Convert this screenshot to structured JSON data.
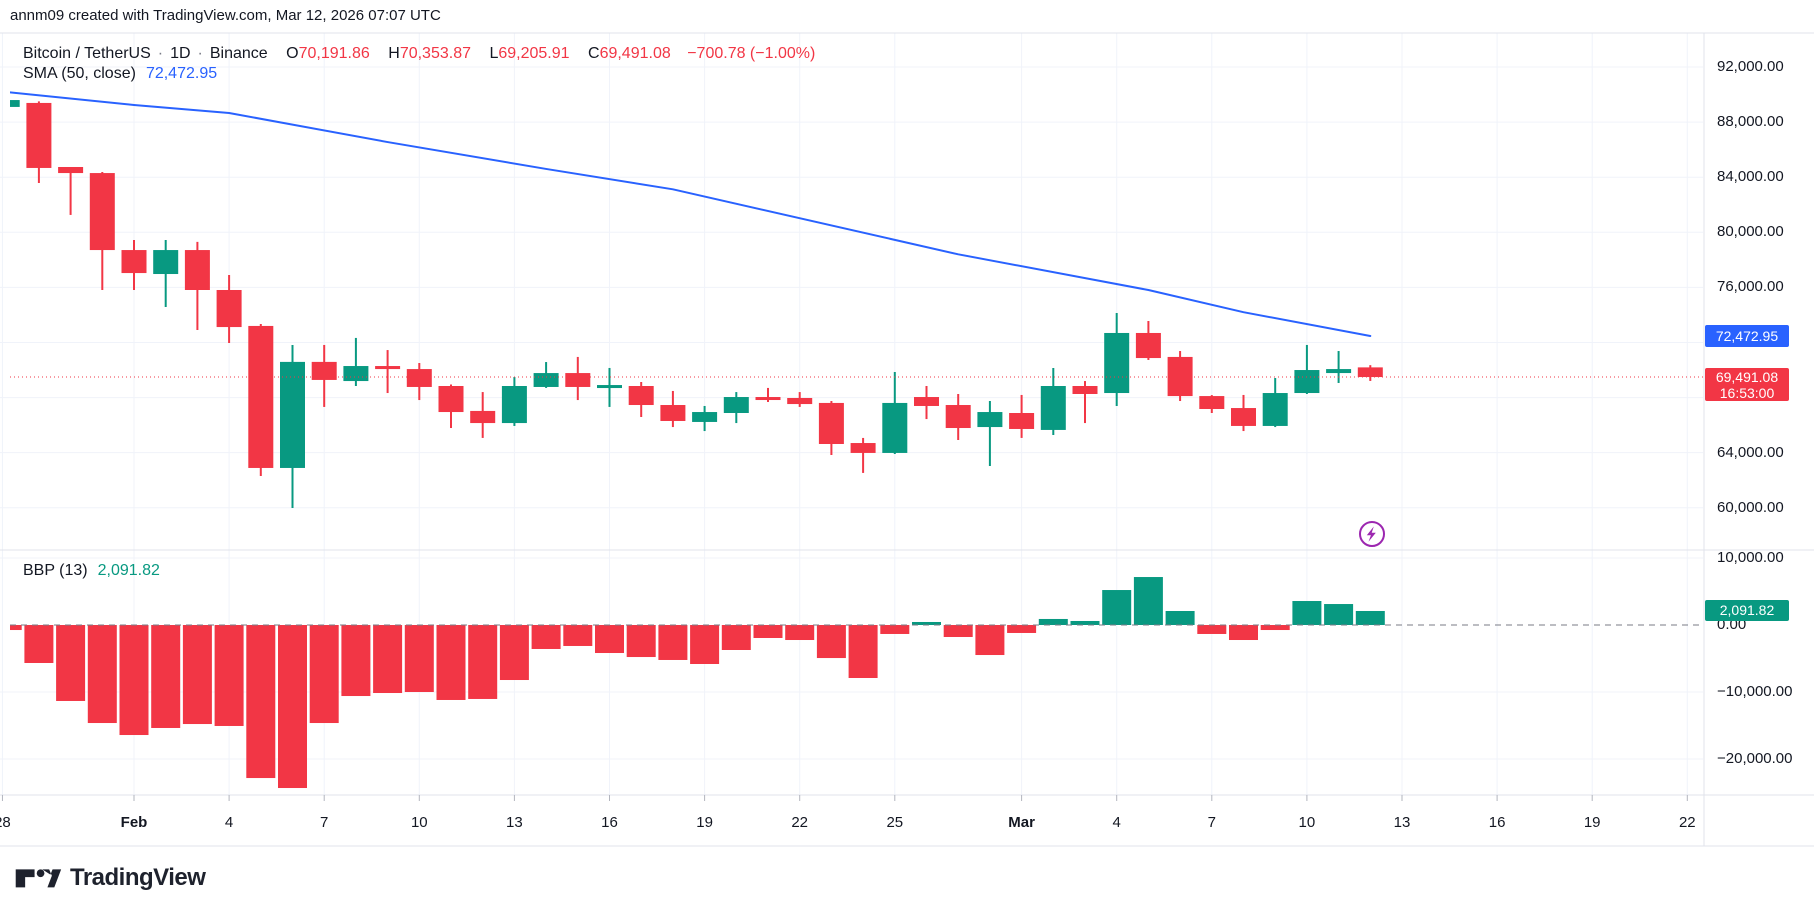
{
  "header": {
    "attribution": "annm09 created with TradingView.com, Mar 12, 2026 07:07 UTC"
  },
  "legend": {
    "symbol": "Bitcoin / TetherUS",
    "sep": "·",
    "interval": "1D",
    "exchange": "Binance",
    "ohlc": {
      "open_label": "O",
      "open": "70,191.86",
      "high_label": "H",
      "high": "70,353.87",
      "low_label": "L",
      "low": "69,205.91",
      "close_label": "C",
      "close": "69,491.08",
      "change": "−700.78 (−1.00%)"
    },
    "sma_label": "SMA (50, close)",
    "sma_value": "72,472.95"
  },
  "bbp_legend": {
    "label": "BBP (13)",
    "value": "2,091.82"
  },
  "badges": {
    "sma": "72,472.95",
    "close_price": "69,491.08",
    "close_time": "16:53:00",
    "bbp": "2,091.82"
  },
  "watermark": {
    "logo_text": "TradingView"
  },
  "icons": {
    "lightning": "lightning-bolt-in-circle"
  },
  "colors": {
    "up": "#089981",
    "down": "#f23645",
    "sma": "#2962ff",
    "grid": "#f0f3fa",
    "border": "#e0e3eb",
    "tick": "#b2b5be",
    "zero_line": "#787b86",
    "text": "#131722",
    "badge_sma_bg": "#2962ff",
    "badge_close_bg": "#f23645",
    "badge_bbp_bg": "#089981",
    "lightning": "#9c27b0"
  },
  "chart_data": {
    "type": "candlestick",
    "title": "Bitcoin / TetherUS, 1D, Binance with SMA(50) overlay and BBP(13) histogram panel",
    "grid": true,
    "legend_position": "top-left",
    "price_axis_side": "right",
    "price_ylim": [
      56934,
      94468
    ],
    "bbp_ylim": [
      -25372,
      11194
    ],
    "close_price_line": 69491.08,
    "sma_current": 72472.95,
    "bbp_current": 2091.82,
    "candles": [
      [
        "Jan 28",
        89100,
        89700,
        89000,
        89600
      ],
      [
        "Jan 29",
        89390,
        89500,
        83580,
        84670
      ],
      [
        "Jan 30",
        84740,
        84740,
        81260,
        84300
      ],
      [
        "Jan 31",
        84300,
        84380,
        75810,
        78710
      ],
      [
        "Feb 1",
        78710,
        79440,
        75810,
        77040
      ],
      [
        "Feb 2",
        76970,
        79440,
        74580,
        78710
      ],
      [
        "Feb 3",
        78710,
        79300,
        72910,
        75810
      ],
      [
        "Feb 4",
        75810,
        76900,
        71960,
        73120
      ],
      [
        "Feb 5",
        73200,
        73340,
        62310,
        62890
      ],
      [
        "Feb 6",
        62890,
        71820,
        59980,
        70590
      ],
      [
        "Feb 7",
        70590,
        71820,
        67320,
        69280
      ],
      [
        "Feb 8",
        69200,
        72330,
        68840,
        70290
      ],
      [
        "Feb 9",
        70290,
        71450,
        68330,
        70070
      ],
      [
        "Feb 10",
        70070,
        70510,
        67820,
        68770
      ],
      [
        "Feb 11",
        68840,
        68950,
        65790,
        66950
      ],
      [
        "Feb 12",
        67030,
        68400,
        65070,
        66150
      ],
      [
        "Feb 13",
        66150,
        69490,
        65940,
        68840
      ],
      [
        "Feb 14",
        68770,
        70580,
        68700,
        69780
      ],
      [
        "Feb 15",
        69780,
        70950,
        67820,
        68770
      ],
      [
        "Feb 16",
        68770,
        70150,
        67320,
        68910
      ],
      [
        "Feb 17",
        68840,
        69130,
        66590,
        67460
      ],
      [
        "Feb 18",
        67460,
        68480,
        65860,
        66300
      ],
      [
        "Feb 19",
        66230,
        67390,
        65570,
        66950
      ],
      [
        "Feb 20",
        66880,
        68400,
        66150,
        68040
      ],
      [
        "Feb 21",
        68040,
        68700,
        67680,
        67970
      ],
      [
        "Feb 22",
        67970,
        68400,
        67320,
        67530
      ],
      [
        "Feb 23",
        67610,
        67750,
        63830,
        64630
      ],
      [
        "Feb 24",
        64700,
        65070,
        62530,
        63980
      ],
      [
        "Feb 25",
        63980,
        69860,
        63900,
        67610
      ],
      [
        "Feb 26",
        68040,
        68840,
        66440,
        67390
      ],
      [
        "Feb 27",
        67460,
        68260,
        64920,
        65790
      ],
      [
        "Feb 28",
        65860,
        67750,
        63030,
        66950
      ],
      [
        "Mar 1",
        66880,
        68190,
        65070,
        65720
      ],
      [
        "Mar 2",
        65650,
        70150,
        65280,
        68840
      ],
      [
        "Mar 3",
        68840,
        69200,
        66150,
        68260
      ],
      [
        "Mar 4",
        68330,
        74140,
        67390,
        72690
      ],
      [
        "Mar 5",
        72690,
        73560,
        70730,
        70870
      ],
      [
        "Mar 6",
        70950,
        71380,
        67750,
        68110
      ],
      [
        "Mar 7",
        68110,
        68180,
        66880,
        67170
      ],
      [
        "Mar 8",
        67240,
        68190,
        65570,
        65940
      ],
      [
        "Mar 9",
        65940,
        69420,
        65860,
        68330
      ],
      [
        "Mar 10",
        68330,
        71820,
        68260,
        70000
      ],
      [
        "Mar 11",
        69780,
        71380,
        69060,
        70070
      ],
      [
        "Mar 12",
        70191.86,
        70353.87,
        69205.91,
        69491.08
      ]
    ],
    "bbp_values": [
      -750,
      -5670,
      -11340,
      -14630,
      -16420,
      -15370,
      -14780,
      -15070,
      -22840,
      -24330,
      -14630,
      -10600,
      -10150,
      -10000,
      -11190,
      -11040,
      -8210,
      -3580,
      -3130,
      -4180,
      -4780,
      -5220,
      -5820,
      -3730,
      -1940,
      -2240,
      -4930,
      -7910,
      -1340,
      450,
      -1790,
      -4480,
      -1190,
      900,
      600,
      5220,
      7160,
      2090,
      -1340,
      -2240,
      -750,
      3580,
      3130,
      2091.82
    ],
    "sma_points": [
      {
        "i": 0,
        "v": 90180
      },
      {
        "i": 4,
        "v": 89240
      },
      {
        "i": 7,
        "v": 88660
      },
      {
        "i": 12,
        "v": 86550
      },
      {
        "i": 17,
        "v": 84600
      },
      {
        "i": 21,
        "v": 83120
      },
      {
        "i": 30,
        "v": 78400
      },
      {
        "i": 36,
        "v": 75810
      },
      {
        "i": 39,
        "v": 74200
      },
      {
        "i": 43,
        "v": 72472.95
      }
    ],
    "price_axis_labels": [
      {
        "v": 92000,
        "label": "92,000.00"
      },
      {
        "v": 88000,
        "label": "88,000.00"
      },
      {
        "v": 84000,
        "label": "84,000.00"
      },
      {
        "v": 80000,
        "label": "80,000.00"
      },
      {
        "v": 76000,
        "label": "76,000.00"
      },
      {
        "v": 64000,
        "label": "64,000.00"
      },
      {
        "v": 60000,
        "label": "60,000.00"
      }
    ],
    "price_gridlines": [
      92000,
      88000,
      84000,
      80000,
      76000,
      72000,
      68000,
      64000,
      60000
    ],
    "bbp_axis_labels": [
      {
        "v": 10000,
        "label": "10,000.00"
      },
      {
        "v": 0,
        "label": "0.00"
      },
      {
        "v": -10000,
        "label": "−10,000.00"
      },
      {
        "v": -20000,
        "label": "−20,000.00"
      }
    ],
    "bbp_gridlines": [
      10000,
      -10000,
      -20000
    ],
    "time_ticks": [
      {
        "i": -0.15,
        "label": "28",
        "bold": false
      },
      {
        "i": 4,
        "label": "Feb",
        "bold": true
      },
      {
        "i": 7,
        "label": "4",
        "bold": false
      },
      {
        "i": 10,
        "label": "7",
        "bold": false
      },
      {
        "i": 13,
        "label": "10",
        "bold": false
      },
      {
        "i": 16,
        "label": "13",
        "bold": false
      },
      {
        "i": 19,
        "label": "16",
        "bold": false
      },
      {
        "i": 22,
        "label": "19",
        "bold": false
      },
      {
        "i": 25,
        "label": "22",
        "bold": false
      },
      {
        "i": 28,
        "label": "25",
        "bold": false
      },
      {
        "i": 32,
        "label": "Mar",
        "bold": true
      },
      {
        "i": 35,
        "label": "4",
        "bold": false
      },
      {
        "i": 38,
        "label": "7",
        "bold": false
      },
      {
        "i": 41,
        "label": "10",
        "bold": false
      },
      {
        "i": 44,
        "label": "13",
        "bold": false
      },
      {
        "i": 47,
        "label": "16",
        "bold": false
      },
      {
        "i": 50,
        "label": "19",
        "bold": false
      },
      {
        "i": 53,
        "label": "22",
        "bold": false
      }
    ]
  }
}
